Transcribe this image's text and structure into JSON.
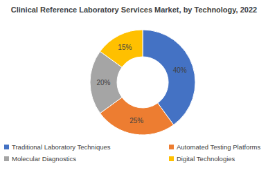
{
  "chart_data": {
    "type": "pie",
    "title": "Clinical Reference Laboratory Services Market, by Technology, 2022",
    "categories": [
      "Traditional Laboratory Techniques",
      "Automated Testing Platforms",
      "Molecular Diagnostics",
      "Digital Technologies"
    ],
    "values": [
      40,
      25,
      20,
      15
    ],
    "value_labels": [
      "40%",
      "25%",
      "20%",
      "15%"
    ],
    "colors": [
      "#4472c4",
      "#ed7d31",
      "#a5a5a5",
      "#ffc000"
    ],
    "data_labels": true,
    "legend": "bottom"
  }
}
